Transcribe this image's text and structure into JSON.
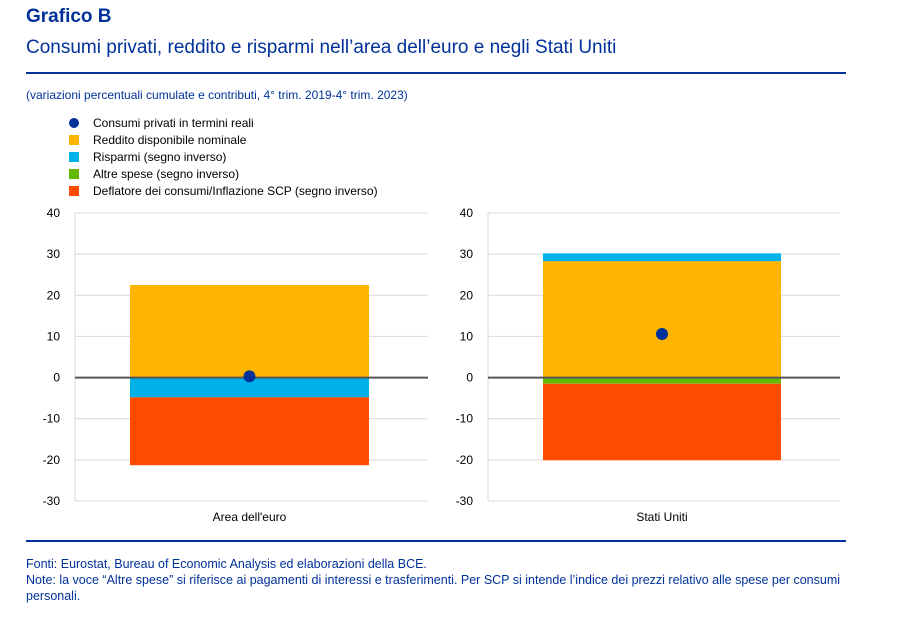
{
  "header": {
    "title": "Grafico B",
    "subtitle": "Consumi privati, reddito e risparmi nell’area dell’euro e negli Stati Uniti",
    "units": "(variazioni percentuali cumulate e contributi, 4° trim. 2019-4° trim. 2023)"
  },
  "footer": {
    "sources": "Fonti: Eurostat, Bureau of Economic Analysis ed elaborazioni della BCE.",
    "notes": "Note: la voce “Altre spese” si riferisce ai pagamenti di interessi e trasferimenti. Per SCP si intende l’indice dei prezzi relativo alle spese per consumi personali."
  },
  "chart_data": {
    "type": "bar",
    "stacked": true,
    "categories": [
      "Area dell'euro",
      "Stati Uniti"
    ],
    "ylim": [
      -30,
      40
    ],
    "yticks": [
      -30,
      -20,
      -10,
      0,
      10,
      20,
      30,
      40
    ],
    "grid": true,
    "legend_position": "top-left",
    "series": [
      {
        "name": "Reddito disponibile nominale",
        "color": "#FFB400",
        "values": [
          22.5,
          28.3
        ]
      },
      {
        "name": "Risparmi (segno inverso)",
        "color": "#00B1EA",
        "values": [
          -4.8,
          1.9
        ]
      },
      {
        "name": "Altre spese (segno inverso)",
        "color": "#65B800",
        "values": [
          0,
          -1.5
        ]
      },
      {
        "name": "Deflatore dei consumi/Inflazione SCP (segno inverso)",
        "color": "#FF4B00",
        "values": [
          -16.5,
          -18.6
        ]
      }
    ],
    "points": {
      "name": "Consumi privati in termini reali",
      "color": "#003299",
      "values": [
        0.3,
        10.6
      ]
    }
  }
}
